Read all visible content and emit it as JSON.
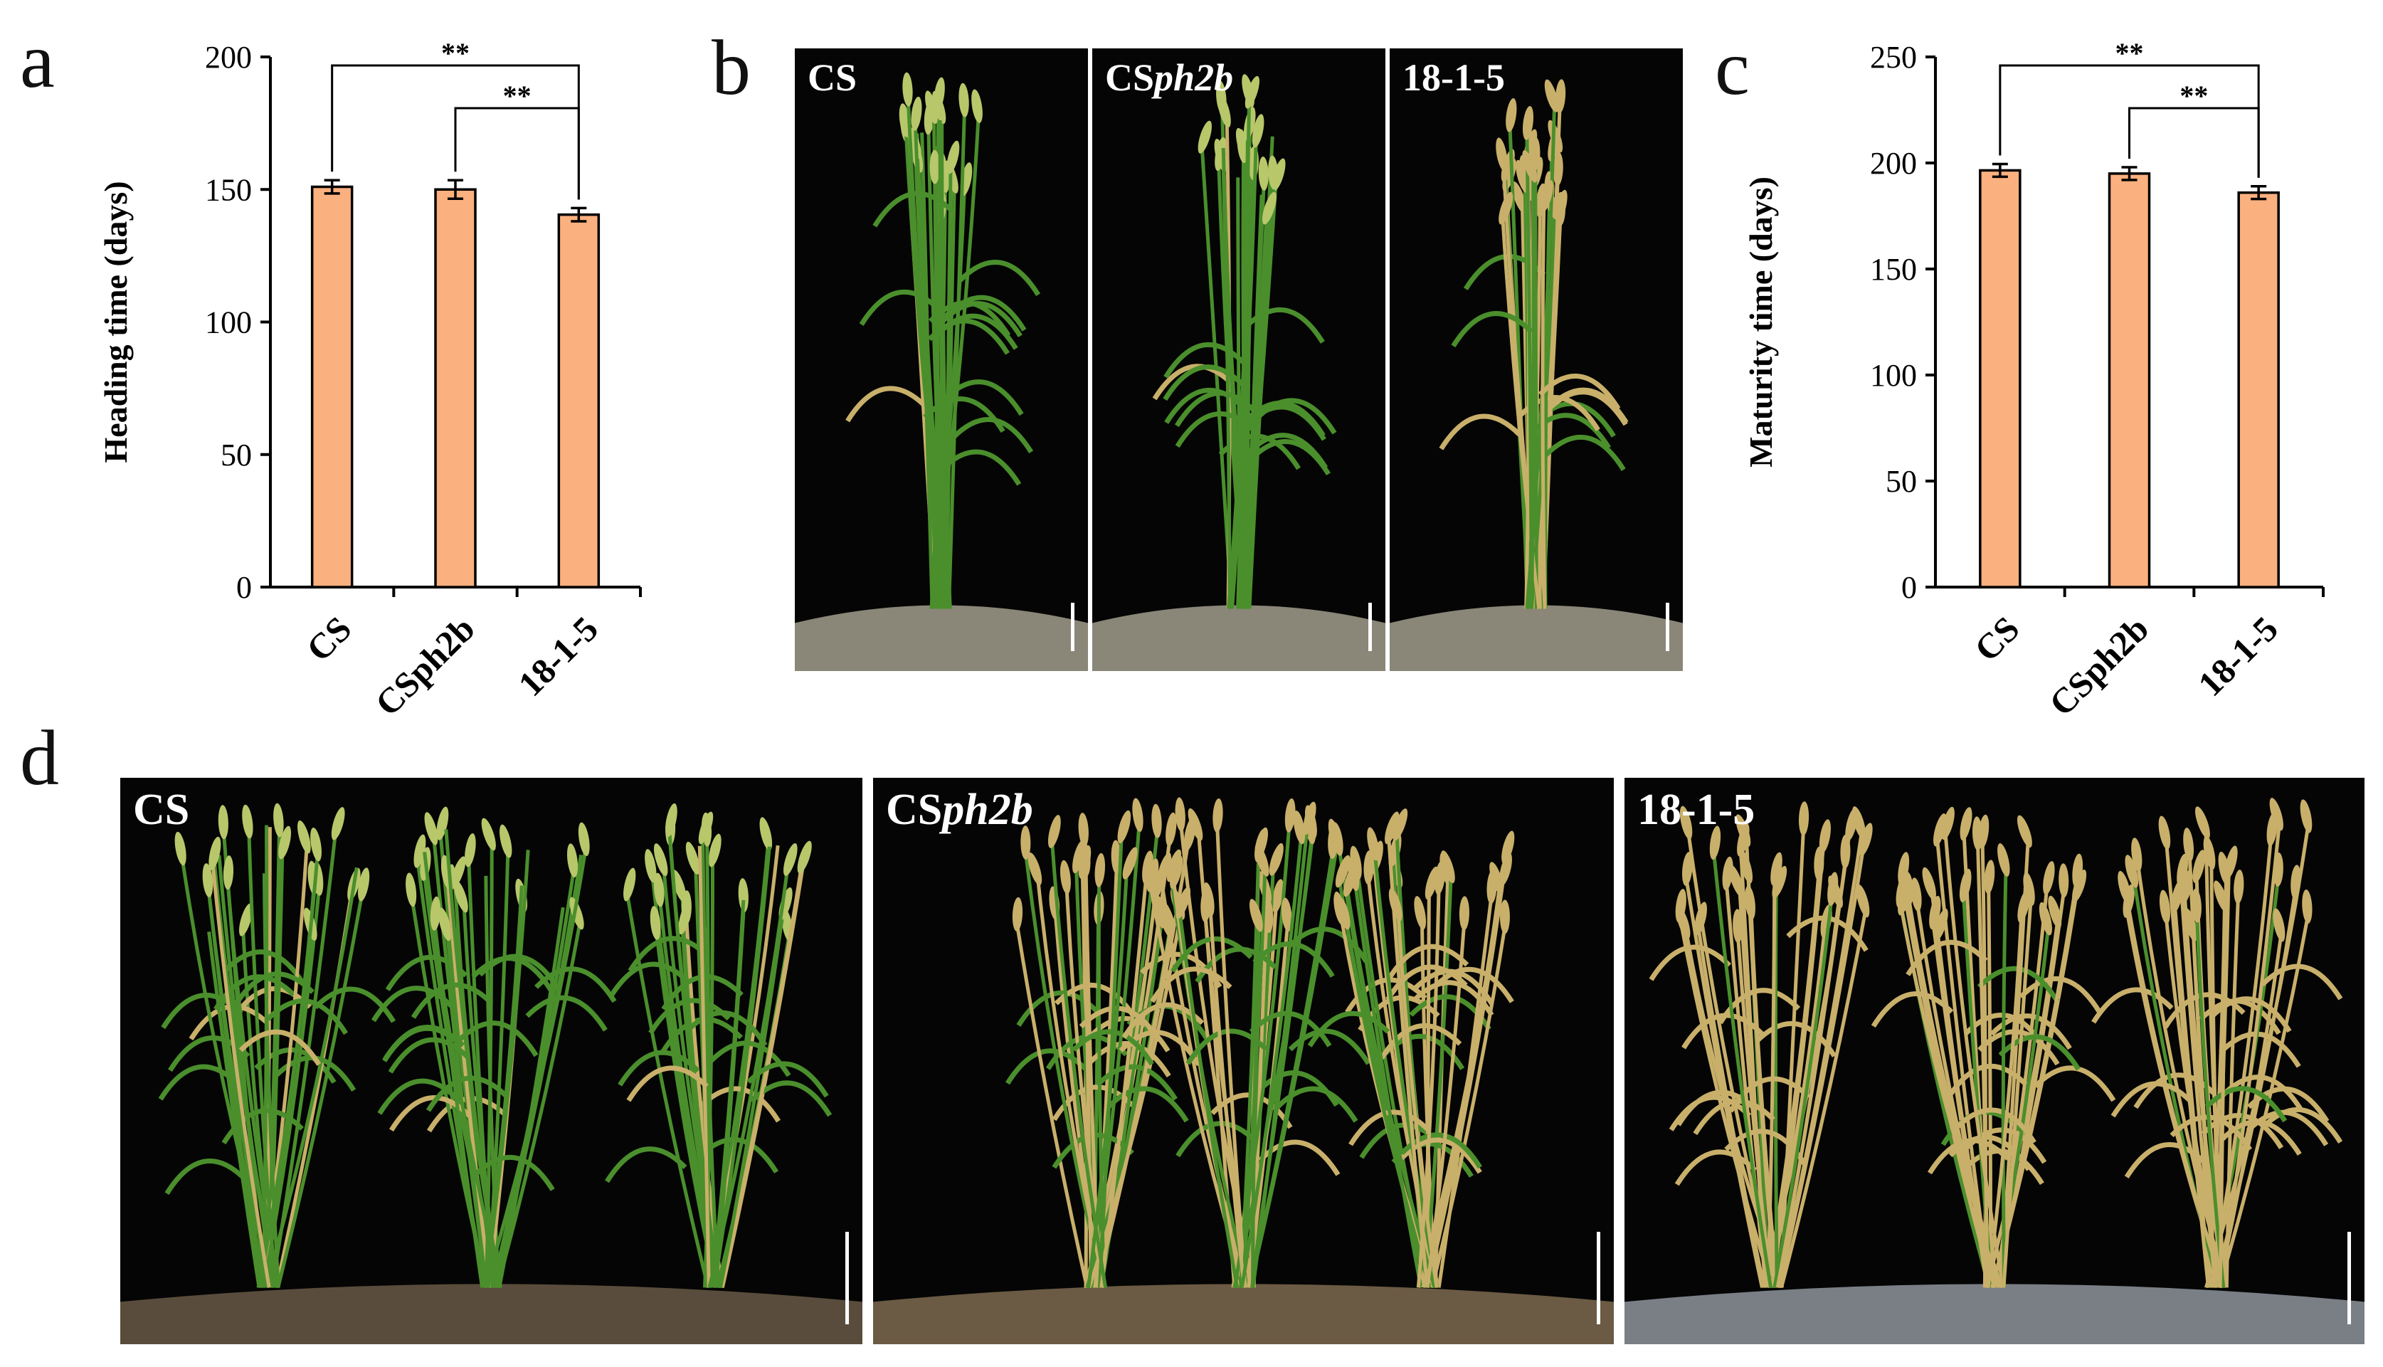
{
  "panels": {
    "a": "a",
    "b": "b",
    "c": "c",
    "d": "d"
  },
  "colors": {
    "bar_fill": "#fbb07f",
    "bar_stroke": "#000000",
    "photo_background": "#050505",
    "foliage_green": "#4a8f2c",
    "mature_straw": "#c9b06a"
  },
  "chart_data": [
    {
      "type": "bar",
      "panel": "a",
      "categories": [
        "CS",
        "CSph2b",
        "18-1-5"
      ],
      "values": [
        151,
        150,
        140.5
      ],
      "errors": [
        2.5,
        3.5,
        2.5
      ],
      "ylabel": "Heading time (days)",
      "xlabel": "",
      "ylim": [
        0,
        200
      ],
      "yticks": [
        0,
        50,
        100,
        150,
        200
      ],
      "significance": [
        {
          "from": 0,
          "to": 2,
          "label": "**"
        },
        {
          "from": 1,
          "to": 2,
          "label": "**"
        }
      ],
      "grid": false
    },
    {
      "type": "bar",
      "panel": "c",
      "categories": [
        "CS",
        "CSph2b",
        "18-1-5"
      ],
      "values": [
        196.5,
        195,
        186
      ],
      "errors": [
        3,
        3,
        3
      ],
      "ylabel": "Maturity time (days)",
      "xlabel": "",
      "ylim": [
        0,
        250
      ],
      "yticks": [
        0,
        50,
        100,
        150,
        200,
        250
      ],
      "significance": [
        {
          "from": 0,
          "to": 2,
          "label": "**"
        },
        {
          "from": 1,
          "to": 2,
          "label": "**"
        }
      ],
      "grid": false
    }
  ],
  "photos_b": [
    {
      "prefix": "CS",
      "italic": "",
      "stage": "green"
    },
    {
      "prefix": "CS",
      "italic": "ph2b",
      "stage": "green"
    },
    {
      "prefix": "18-1-5",
      "italic": "",
      "stage": "heading"
    }
  ],
  "photos_d": [
    {
      "prefix": "CS",
      "italic": "",
      "stage": "green"
    },
    {
      "prefix": "CS",
      "italic": "ph2b",
      "stage": "mixed"
    },
    {
      "prefix": "18-1-5",
      "italic": "",
      "stage": "mature"
    }
  ]
}
